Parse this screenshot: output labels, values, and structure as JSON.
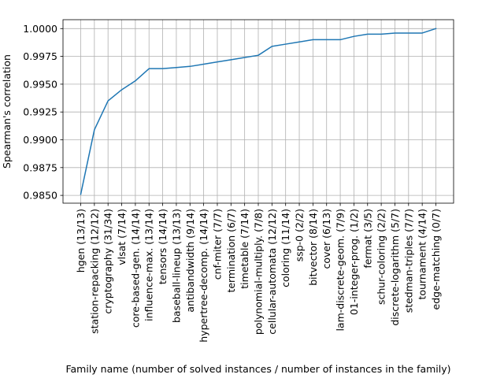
{
  "chart_data": {
    "type": "line",
    "title": "",
    "xlabel": "Family name (number of solved instances / number of instances in the family)",
    "ylabel": "Spearman's correlation",
    "grid": true,
    "ylim": [
      0.9843,
      1.0008
    ],
    "yticks": [
      0.985,
      0.9875,
      0.99,
      0.9925,
      0.995,
      0.9975,
      1.0
    ],
    "ytick_labels": [
      "0.9850",
      "0.9875",
      "0.9900",
      "0.9925",
      "0.9950",
      "0.9975",
      "1.0000"
    ],
    "line_color": "#1f77b4",
    "categories": [
      "hgen (13/13)",
      "station-repacking (12/12)",
      "cryptography (31/34)",
      "vlsat (7/14)",
      "core-based-gen. (14/14)",
      "influence-max. (13/14)",
      "tensors (14/14)",
      "baseball-lineup (13/13)",
      "antibandwidth (9/14)",
      "hypertree-decomp. (14/14)",
      "cnf-miter (7/7)",
      "termination (6/7)",
      "timetable (7/14)",
      "polynomial-multiply. (7/8)",
      "cellular-automata (12/12)",
      "coloring (11/14)",
      "ssp-0 (2/2)",
      "bitvector (8/14)",
      "cover (6/13)",
      "lam-discrete-geom. (7/9)",
      "01-integer-prog. (1/2)",
      "fermat (3/5)",
      "schur-coloring (2/2)",
      "discrete-logarithm (5/7)",
      "stedman-triples (7/7)",
      "tournament (4/14)",
      "edge-matching (0/7)"
    ],
    "values": [
      0.9851,
      0.9909,
      0.9935,
      0.9945,
      0.9953,
      0.9964,
      0.9964,
      0.9965,
      0.9966,
      0.9968,
      0.997,
      0.9972,
      0.9974,
      0.9976,
      0.9984,
      0.9986,
      0.9988,
      0.999,
      0.999,
      0.999,
      0.9993,
      0.9995,
      0.9995,
      0.9996,
      0.9996,
      0.9996,
      1.0
    ]
  }
}
